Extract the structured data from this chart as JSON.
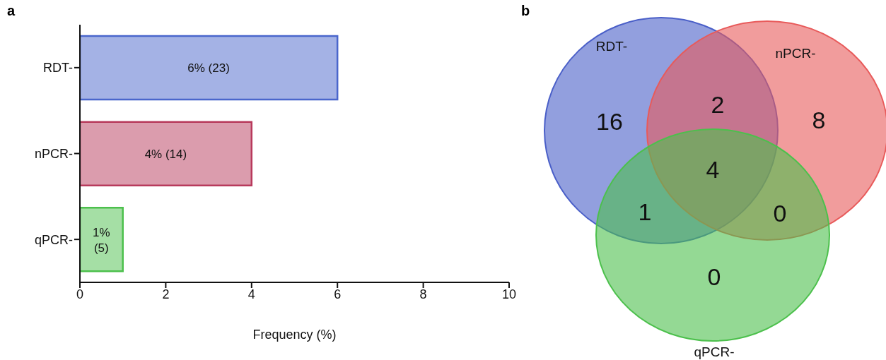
{
  "chart_data": [
    {
      "type": "bar",
      "title": "a",
      "orientation": "horizontal",
      "categories": [
        "RDT-",
        "nPCR-",
        "qPCR-"
      ],
      "values": [
        6,
        4,
        1
      ],
      "colors": [
        "#4a66cc",
        "#b83a5c",
        "#4cc04c"
      ],
      "value_labels": [
        "6% (23)",
        "4% (14)",
        "1% (5)"
      ],
      "xlim": [
        0,
        10
      ],
      "xticks": [
        0,
        2,
        4,
        6,
        8,
        10
      ],
      "xlabel": "Frequency (%)",
      "grid": false,
      "legend": false
    },
    {
      "type": "other",
      "title": "b",
      "categories": [
        "RDT-",
        "nPCR-",
        "qPCR-"
      ],
      "colors": [
        "#4a5fc8",
        "#e85a5a",
        "#4cc04c"
      ],
      "annotations": [
        "16",
        "8",
        "0",
        "2",
        "1",
        "0",
        "4"
      ]
    }
  ]
}
